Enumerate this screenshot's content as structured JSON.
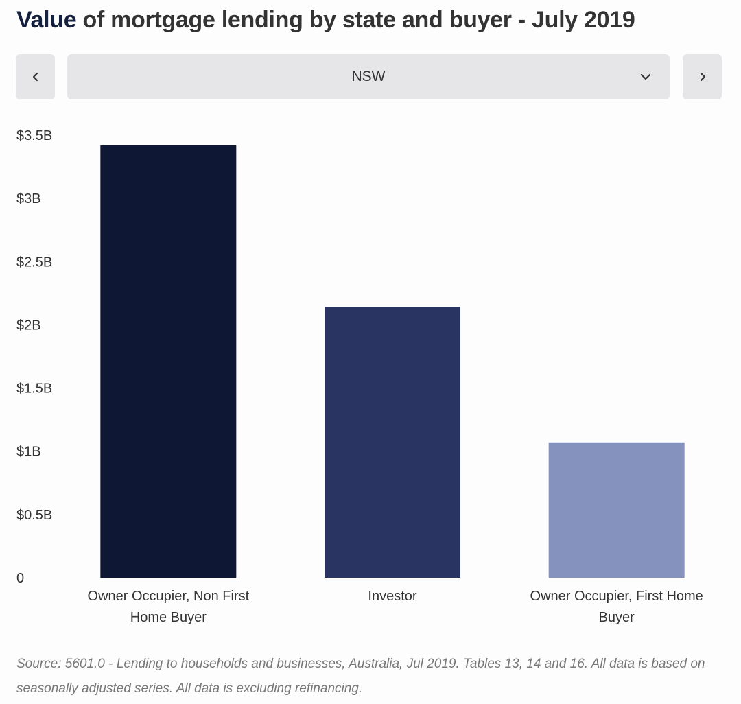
{
  "title": {
    "accent": "Value",
    "rest": " of mortgage lending by state and buyer - July 2019"
  },
  "selector": {
    "value": "NSW",
    "prev_icon": "chevron-left-icon",
    "next_icon": "chevron-right-icon",
    "dropdown_icon": "chevron-down-icon"
  },
  "chart_data": {
    "type": "bar",
    "categories": [
      [
        "Owner Occupier, Non First",
        "Home Buyer"
      ],
      [
        "Investor"
      ],
      [
        "Owner Occupier, First Home",
        "Buyer"
      ]
    ],
    "values": [
      3.42,
      2.14,
      1.07
    ],
    "colors": [
      "#0e1734",
      "#2a3462",
      "#8592bd"
    ],
    "ylim": [
      0,
      3.5
    ],
    "yticks": [
      0,
      0.5,
      1,
      1.5,
      2,
      2.5,
      3,
      3.5
    ],
    "ytick_labels": [
      "0",
      "$0.5B",
      "$1B",
      "$1.5B",
      "$2B",
      "$2.5B",
      "$3B",
      "$3.5B"
    ],
    "grid": false,
    "legend": "none"
  },
  "source": "Source:  5601.0 - Lending to households and businesses, Australia, Jul 2019. Tables 13, 14 and 16. All data is based on seasonally adjusted series. All data is excluding refinancing."
}
